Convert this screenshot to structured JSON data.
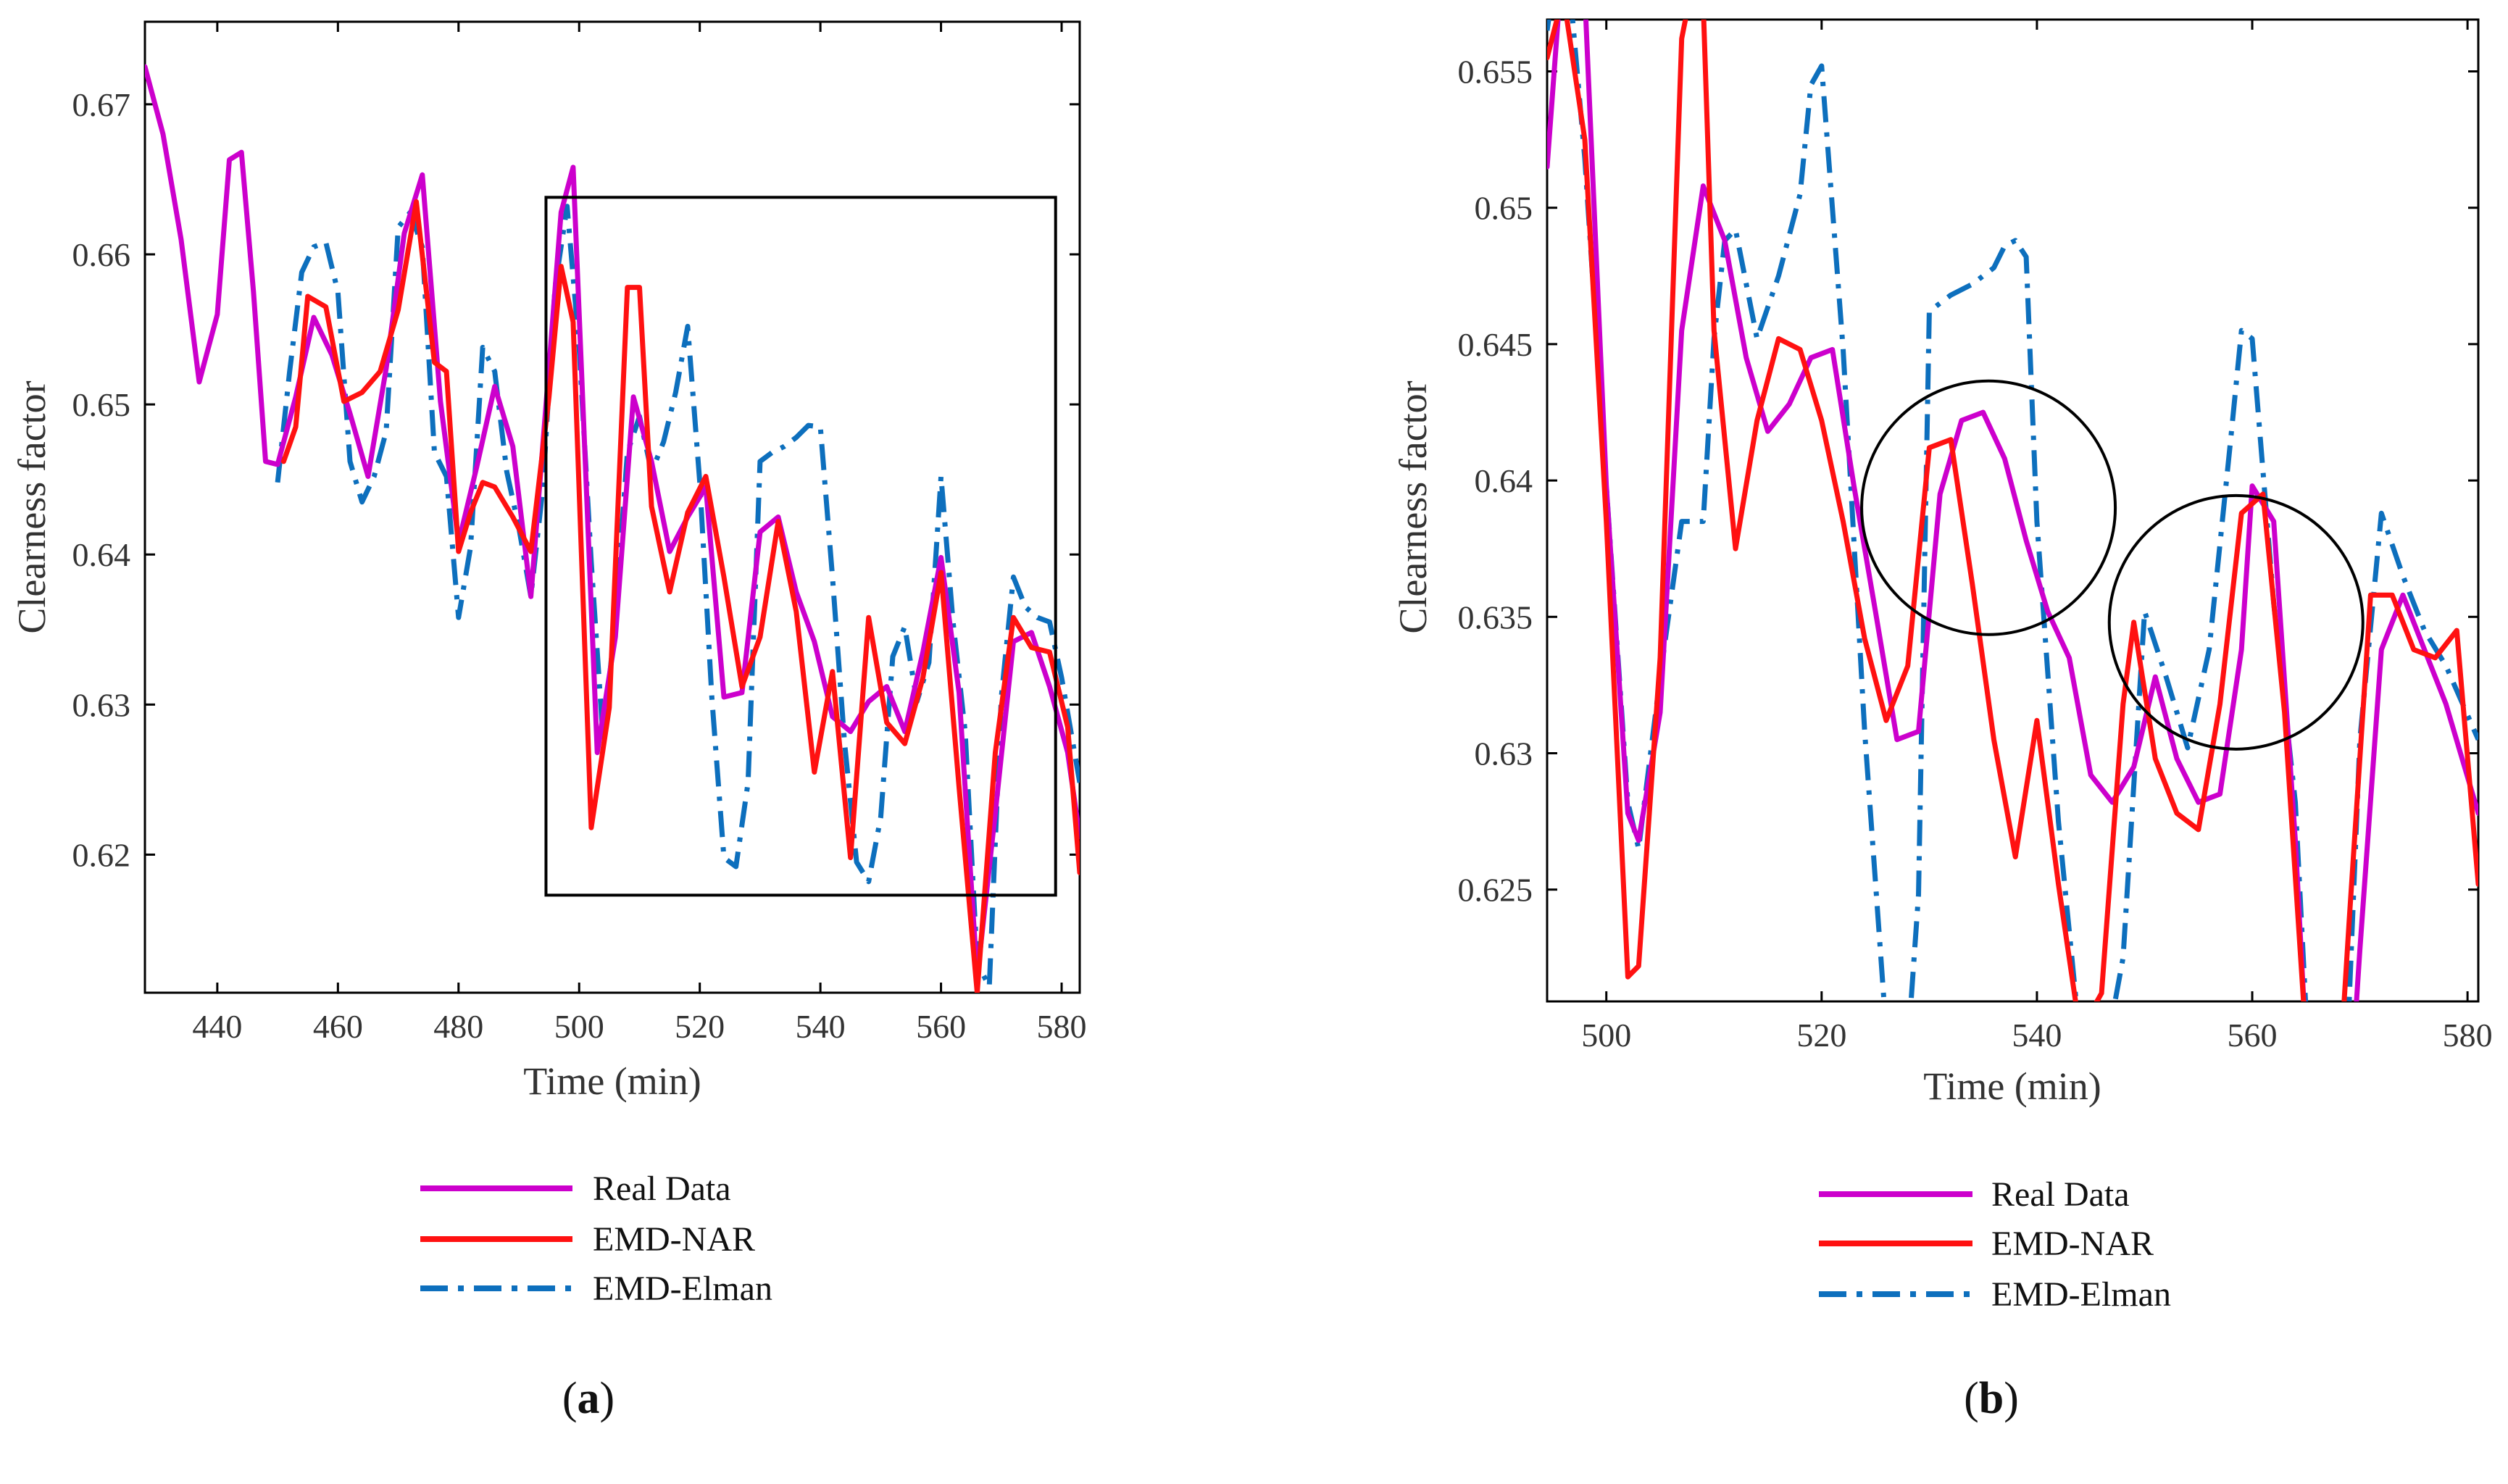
{
  "colors": {
    "real": "#cc00cc",
    "nar": "#ff1111",
    "elman": "#0d6fbd",
    "axis": "#000000"
  },
  "panels": [
    {
      "id": "a",
      "label_open": "(",
      "label_letter": "a",
      "label_close": ")"
    },
    {
      "id": "b",
      "label_open": "(",
      "label_letter": "b",
      "label_close": ")"
    }
  ],
  "chart_data": [
    {
      "type": "line",
      "panel": "a",
      "title": "",
      "xlabel": "Time (min)",
      "ylabel": "Clearness factor",
      "xlim": [
        428,
        583
      ],
      "ylim": [
        0.6108,
        0.6755
      ],
      "xticks": [
        440,
        460,
        480,
        500,
        520,
        540,
        560,
        580
      ],
      "xtick_labels": [
        "440",
        "460",
        "480",
        "500",
        "520",
        "540",
        "560",
        "580"
      ],
      "yticks": [
        0.62,
        0.63,
        0.64,
        0.65,
        0.66,
        0.67
      ],
      "ytick_labels": [
        "0.62",
        "0.63",
        "0.64",
        "0.65",
        "0.66",
        "0.67"
      ],
      "legend": [
        "Real Data",
        "EMD-NAR",
        "EMD-Elman"
      ],
      "legend_position": "below",
      "annotations": [
        {
          "shape": "rectangle",
          "x": [
            494.5,
            579
          ],
          "y": [
            0.6173,
            0.6638
          ]
        }
      ],
      "series": [
        {
          "name": "Real Data",
          "x": [
            428,
            431,
            434,
            437,
            440,
            442,
            444,
            446,
            448,
            450,
            453,
            456,
            459,
            462,
            465,
            468,
            471,
            474,
            477,
            480,
            483,
            486,
            489,
            492,
            495,
            497,
            499,
            503,
            506,
            509,
            512,
            515,
            518,
            521,
            524,
            527,
            530,
            533,
            536,
            539,
            542,
            545,
            548,
            551,
            554,
            557,
            560,
            563,
            566,
            569,
            572,
            575,
            578,
            581,
            583
          ],
          "values": [
            0.6725,
            0.668,
            0.661,
            0.6515,
            0.656,
            0.6663,
            0.6668,
            0.6575,
            0.6462,
            0.646,
            0.6505,
            0.6558,
            0.6533,
            0.6494,
            0.6452,
            0.6524,
            0.6614,
            0.6653,
            0.6502,
            0.6408,
            0.6458,
            0.6512,
            0.6472,
            0.6372,
            0.6525,
            0.6628,
            0.6658,
            0.6268,
            0.6345,
            0.6505,
            0.6462,
            0.6402,
            0.6425,
            0.6445,
            0.6305,
            0.6308,
            0.6415,
            0.6425,
            0.6375,
            0.6342,
            0.6292,
            0.6282,
            0.6302,
            0.6312,
            0.6282,
            0.6335,
            0.6398,
            0.6308,
            0.6118,
            0.6228,
            0.6342,
            0.6348,
            0.6312,
            0.6268,
            0.6212
          ]
        },
        {
          "name": "EMD-NAR",
          "x": [
            451,
            453,
            455,
            458,
            461,
            464,
            467,
            470,
            473,
            476,
            478,
            480,
            482,
            484,
            486,
            489,
            492,
            495,
            497,
            499,
            502,
            505,
            508,
            510,
            512,
            515,
            518,
            521,
            524,
            527,
            530,
            533,
            536,
            539,
            542,
            545,
            548,
            551,
            554,
            557,
            560,
            563,
            566,
            569,
            572,
            575,
            578,
            581,
            583
          ],
          "values": [
            0.6462,
            0.6485,
            0.6572,
            0.6565,
            0.6502,
            0.6508,
            0.6522,
            0.6563,
            0.6635,
            0.6528,
            0.6522,
            0.6402,
            0.6428,
            0.6448,
            0.6445,
            0.6425,
            0.6402,
            0.6505,
            0.6592,
            0.6555,
            0.6218,
            0.6298,
            0.6578,
            0.6578,
            0.6432,
            0.6375,
            0.6428,
            0.6452,
            0.6385,
            0.6312,
            0.6345,
            0.6422,
            0.6362,
            0.6255,
            0.6322,
            0.6198,
            0.6358,
            0.6288,
            0.6274,
            0.6318,
            0.6388,
            0.6245,
            0.6108,
            0.6268,
            0.6358,
            0.6338,
            0.6335,
            0.6285,
            0.6188
          ]
        },
        {
          "name": "EMD-Elman",
          "x": [
            450,
            452,
            454,
            456,
            458,
            460,
            462,
            464,
            466,
            468,
            470,
            472,
            474,
            476,
            478,
            480,
            482,
            484,
            486,
            488,
            490,
            492,
            494,
            496,
            498,
            500,
            502,
            504,
            506,
            508,
            510,
            512,
            514,
            516,
            518,
            520,
            522,
            524,
            526,
            528,
            530,
            532,
            534,
            536,
            538,
            540,
            542,
            544,
            546,
            548,
            550,
            552,
            554,
            556,
            558,
            560,
            562,
            564,
            566,
            568,
            570,
            572,
            574,
            576,
            578,
            580,
            583
          ],
          "values": [
            0.6448,
            0.6522,
            0.6588,
            0.6605,
            0.6608,
            0.6575,
            0.6462,
            0.6435,
            0.6452,
            0.6482,
            0.6618,
            0.6628,
            0.6605,
            0.6468,
            0.6452,
            0.6358,
            0.6405,
            0.6538,
            0.6522,
            0.6455,
            0.6418,
            0.6372,
            0.6445,
            0.6578,
            0.6632,
            0.6538,
            0.6395,
            0.6275,
            0.6358,
            0.6468,
            0.6492,
            0.6455,
            0.6475,
            0.6508,
            0.6552,
            0.6448,
            0.6305,
            0.6198,
            0.6192,
            0.6248,
            0.6462,
            0.6468,
            0.6472,
            0.6478,
            0.6486,
            0.6485,
            0.6385,
            0.6275,
            0.6195,
            0.6182,
            0.6225,
            0.6332,
            0.6352,
            0.6302,
            0.6328,
            0.6452,
            0.6355,
            0.6282,
            0.6128,
            0.6112,
            0.6305,
            0.6385,
            0.6365,
            0.6358,
            0.6355,
            0.6318,
            0.6248
          ]
        }
      ]
    },
    {
      "type": "line",
      "panel": "b",
      "title": "",
      "xlabel": "Time (min)",
      "ylabel": "Clearness factor",
      "xlim": [
        494.5,
        581
      ],
      "ylim": [
        0.6209,
        0.6569
      ],
      "xticks": [
        500,
        520,
        540,
        560,
        580
      ],
      "xtick_labels": [
        "500",
        "520",
        "540",
        "560",
        "580"
      ],
      "yticks": [
        0.625,
        0.63,
        0.635,
        0.64,
        0.645,
        0.65,
        0.655
      ],
      "ytick_labels": [
        "0.625",
        "0.63",
        "0.635",
        "0.64",
        "0.645",
        "0.65",
        "0.655"
      ],
      "legend": [
        "Real Data",
        "EMD-NAR",
        "EMD-Elman"
      ],
      "legend_position": "below",
      "annotations": [
        {
          "shape": "circle",
          "center": [
            535.5,
            0.639
          ]
        },
        {
          "shape": "circle",
          "center": [
            558.5,
            0.6348
          ]
        }
      ],
      "series": [
        {
          "name": "Real Data",
          "x": [
            494.5,
            496,
            498,
            500,
            502,
            503,
            505,
            507,
            509,
            511,
            513,
            515,
            517,
            519,
            521,
            523,
            525,
            527,
            529,
            531,
            533,
            535,
            537,
            539,
            541,
            543,
            545,
            547,
            549,
            551,
            553,
            555,
            557,
            559,
            560,
            562,
            564,
            566,
            568,
            570,
            572,
            574,
            576,
            578,
            581
          ],
          "values": [
            0.6515,
            0.6595,
            0.6578,
            0.6398,
            0.6278,
            0.6268,
            0.6315,
            0.6455,
            0.6508,
            0.6488,
            0.6445,
            0.6418,
            0.6428,
            0.6445,
            0.6448,
            0.6398,
            0.6352,
            0.6305,
            0.6308,
            0.6395,
            0.6422,
            0.6425,
            0.6408,
            0.6378,
            0.6352,
            0.6335,
            0.6292,
            0.6282,
            0.6295,
            0.6328,
            0.6298,
            0.6282,
            0.6285,
            0.6338,
            0.6398,
            0.6385,
            0.6268,
            0.6118,
            0.6108,
            0.6228,
            0.6338,
            0.6358,
            0.6338,
            0.6318,
            0.6278
          ]
        },
        {
          "name": "EMD-NAR",
          "x": [
            494.5,
            496,
            498,
            500,
            502,
            503,
            505,
            507,
            508,
            509,
            510,
            512,
            514,
            516,
            518,
            520,
            522,
            524,
            526,
            528,
            530,
            532,
            534,
            536,
            538,
            540,
            542,
            544,
            546,
            548,
            549,
            551,
            553,
            555,
            557,
            559,
            561,
            563,
            565,
            567,
            569,
            571,
            573,
            575,
            577,
            579,
            581
          ],
          "values": [
            0.6555,
            0.6578,
            0.6525,
            0.6385,
            0.6218,
            0.6222,
            0.6335,
            0.6562,
            0.6582,
            0.6575,
            0.6455,
            0.6375,
            0.6422,
            0.6452,
            0.6448,
            0.6422,
            0.6385,
            0.6342,
            0.6312,
            0.6332,
            0.6412,
            0.6415,
            0.6362,
            0.6305,
            0.6262,
            0.6312,
            0.6252,
            0.6198,
            0.6212,
            0.6318,
            0.6348,
            0.6298,
            0.6278,
            0.6272,
            0.6318,
            0.6388,
            0.6395,
            0.6315,
            0.6195,
            0.6112,
            0.6238,
            0.6358,
            0.6358,
            0.6338,
            0.6335,
            0.6345,
            0.6252
          ]
        },
        {
          "name": "EMD-Elman",
          "x": [
            494.5,
            496,
            498,
            500,
            502,
            503,
            505,
            507,
            509,
            510,
            511,
            512,
            514,
            516,
            518,
            519,
            520,
            522,
            524,
            526,
            528,
            529,
            530,
            532,
            534,
            536,
            537,
            538,
            539,
            540,
            542,
            544,
            546,
            548,
            550,
            552,
            554,
            556,
            558,
            559,
            560,
            562,
            564,
            566,
            568,
            570,
            572,
            574,
            576,
            578,
            581
          ],
          "values": [
            0.6565,
            0.6608,
            0.6518,
            0.6398,
            0.6282,
            0.6265,
            0.6328,
            0.6385,
            0.6385,
            0.6452,
            0.6488,
            0.6492,
            0.6452,
            0.6475,
            0.6505,
            0.6545,
            0.6552,
            0.6448,
            0.6308,
            0.6198,
            0.6192,
            0.6248,
            0.6462,
            0.6468,
            0.6472,
            0.6478,
            0.6486,
            0.6488,
            0.6482,
            0.6385,
            0.6275,
            0.6195,
            0.6182,
            0.6225,
            0.6352,
            0.6328,
            0.6302,
            0.6338,
            0.6415,
            0.6455,
            0.6452,
            0.6355,
            0.6282,
            0.6128,
            0.6112,
            0.6305,
            0.6388,
            0.6365,
            0.6345,
            0.6332,
            0.6305
          ]
        }
      ]
    }
  ]
}
